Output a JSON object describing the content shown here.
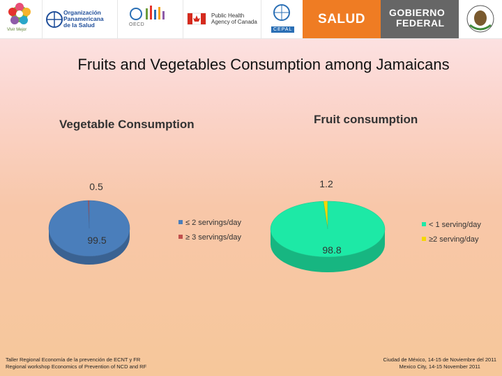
{
  "banner": {
    "vivir_label": "Vivir Mejor",
    "ops_line1": "Organización",
    "ops_line2": "Panamericana",
    "ops_line3": "de la Salud",
    "oecd_label": "OECD",
    "canada_line1": "Public Health",
    "canada_line2": "Agency of Canada",
    "cepal_label": "CEPAL",
    "salud_label": "SALUD",
    "gobierno_line1": "GOBIERNO",
    "gobierno_line2": "FEDERAL",
    "colors": {
      "salud_bg": "#ef7c23",
      "gobierno_bg": "#666666"
    }
  },
  "title": "Fruits and Vegetables Consumption among Jamaicans",
  "chart_data": [
    {
      "type": "pie",
      "title": "Vegetable Consumption",
      "categories": [
        "≤ 2 servings/day",
        "≥ 3 servings/day"
      ],
      "values": [
        99.5,
        0.5
      ],
      "data_labels": [
        "99.5",
        "0.5"
      ],
      "colors": [
        "#4a7ebb",
        "#c0504d"
      ],
      "legend_position": "right",
      "style": "3d"
    },
    {
      "type": "pie",
      "title": "Fruit consumption",
      "categories": [
        "< 1 serving/day",
        "≥2 serving/day"
      ],
      "values": [
        98.8,
        1.2
      ],
      "data_labels": [
        "98.8",
        "1.2"
      ],
      "colors": [
        "#1de9a6",
        "#f5d800"
      ],
      "legend_position": "right",
      "style": "3d"
    }
  ],
  "footer": {
    "left_line1": "Taller Regional Economía de la prevención de ECNT y FR",
    "left_line2": "Regional workshop Economics of Prevention of NCD and RF",
    "right_line1": "Ciudad de México, 14-15 de Noviembre del 2011",
    "right_line2": "Mexico City, 14-15 November 2011"
  }
}
